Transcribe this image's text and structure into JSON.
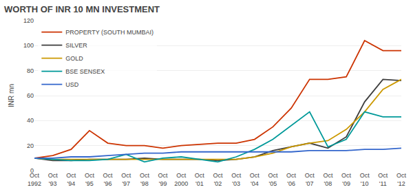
{
  "chart_data": {
    "type": "line",
    "title": "WORTH OF INR 10 MN INVESTMENT",
    "y_label": "INR mn",
    "categories": [
      "Oct\n1992",
      "Oct\n'93",
      "Oct\n'94",
      "Oct\n'95",
      "Oct\n'96",
      "Oct\n'97",
      "Oct\n'98",
      "Oct\n'99",
      "Oct\n2000",
      "Oct\n'01",
      "Oct\n'02",
      "Oct\n'03",
      "Oct\n'04",
      "Oct\n'05",
      "Oct\n'06",
      "Oct\n'07",
      "Oct\n'08",
      "Oct\n'09",
      "Oct\n'10",
      "Oct\n'11",
      "Oct\n'12"
    ],
    "series": [
      {
        "name": "PROPERTY (SOUTH MUMBAI)",
        "color": "#cc3300",
        "values": [
          10,
          12,
          17,
          32,
          22,
          20,
          20,
          18,
          20,
          21,
          22,
          22,
          25,
          35,
          50,
          73,
          73,
          75,
          104,
          96,
          96
        ]
      },
      {
        "name": "SILVER",
        "color": "#3d3d3d",
        "values": [
          10,
          8,
          8,
          9,
          9,
          9,
          10,
          9,
          9,
          9,
          8,
          9,
          11,
          16,
          19,
          22,
          18,
          27,
          55,
          73,
          72
        ]
      },
      {
        "name": "GOLD",
        "color": "#cc9900",
        "values": [
          10,
          9,
          9,
          9,
          9,
          9,
          9,
          9,
          9,
          9,
          9,
          9,
          11,
          14,
          19,
          22,
          24,
          33,
          47,
          65,
          73
        ]
      },
      {
        "name": "BSE SENSEX",
        "color": "#009999",
        "values": [
          10,
          9,
          8,
          8,
          9,
          13,
          7,
          10,
          11,
          9,
          7,
          11,
          17,
          25,
          36,
          47,
          19,
          25,
          47,
          43,
          43
        ]
      },
      {
        "name": "USD",
        "color": "#3366cc",
        "values": [
          10,
          10,
          11,
          11,
          12,
          13,
          14,
          14,
          15,
          15,
          15,
          15,
          15,
          15,
          15,
          16,
          16,
          16,
          17,
          17,
          18
        ]
      }
    ],
    "ylim": [
      0,
      120
    ],
    "yticks": [
      0,
      20,
      40,
      60,
      80,
      100,
      120
    ],
    "grid": true,
    "legend": "upper left"
  }
}
